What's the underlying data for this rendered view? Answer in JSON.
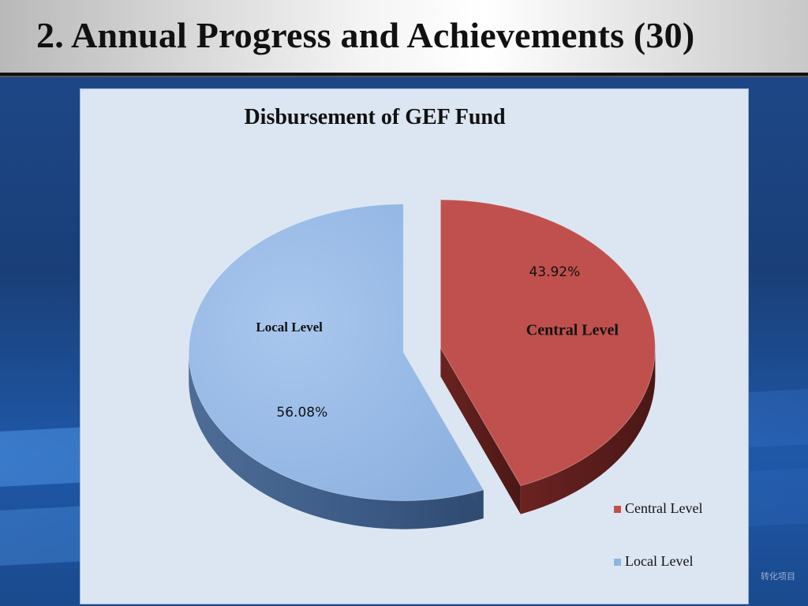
{
  "slide": {
    "title": "2. Annual Progress and Achievements (30)"
  },
  "chart_data": {
    "type": "pie",
    "title": "Disbursement of GEF Fund",
    "categories": [
      "Central Level",
      "Local Level"
    ],
    "values": [
      43.92,
      56.08
    ],
    "value_labels": [
      "43.92%",
      "56.08%"
    ],
    "colors": [
      "#c0504d",
      "#8fb4e3"
    ],
    "exploded": true,
    "style": "3d",
    "legend": {
      "position": "bottom-right",
      "entries": [
        "Central Level",
        "Local Level"
      ]
    }
  },
  "watermark": {
    "text": "转化项目"
  }
}
